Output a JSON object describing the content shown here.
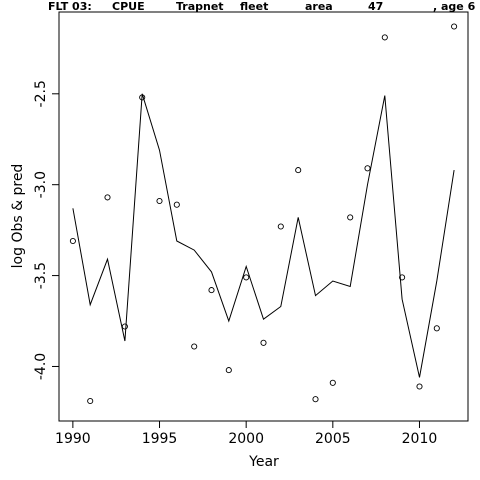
{
  "chart_data": {
    "type": "line",
    "title_parts": [
      "FLT 03:",
      "CPUE",
      "Trapnet",
      "fleet",
      "area",
      "47",
      ", age 6"
    ],
    "xlabel": "Year",
    "ylabel": "log Obs & pred",
    "xlim": [
      1989.2,
      2012.8
    ],
    "ylim": [
      -4.3,
      -2.05
    ],
    "x_ticks": [
      1990,
      1995,
      2000,
      2005,
      2010
    ],
    "y_ticks": [
      -4.0,
      -3.5,
      -3.0,
      -2.5
    ],
    "x_tick_labels": [
      "1990",
      "1995",
      "2000",
      "2005",
      "2010"
    ],
    "y_tick_labels": [
      "-4.0",
      "-3.5",
      "-3.0",
      "-2.5"
    ],
    "series": [
      {
        "style": "points",
        "x": [
          1990,
          1991,
          1992,
          1993,
          1994,
          1995,
          1996,
          1997,
          1998,
          1999,
          2000,
          2001,
          2002,
          2003,
          2004,
          2005,
          2006,
          2007,
          2008,
          2009,
          2010,
          2011,
          2012
        ],
        "y": [
          -3.31,
          -4.19,
          -3.07,
          -3.78,
          -2.52,
          -3.09,
          -3.11,
          -3.89,
          -3.58,
          -4.02,
          -3.51,
          -3.87,
          -3.23,
          -2.92,
          -4.18,
          -4.09,
          -3.18,
          -2.91,
          -2.19,
          -3.51,
          -4.11,
          -3.79,
          -2.13
        ]
      },
      {
        "style": "line",
        "x": [
          1990,
          1991,
          1992,
          1993,
          1994,
          1995,
          1996,
          1997,
          1998,
          1999,
          2000,
          2001,
          2002,
          2003,
          2004,
          2005,
          2006,
          2007,
          2008,
          2009,
          2010,
          2011,
          2012
        ],
        "y": [
          -3.13,
          -3.66,
          -3.41,
          -3.86,
          -2.5,
          -2.81,
          -3.31,
          -3.36,
          -3.48,
          -3.75,
          -3.45,
          -3.74,
          -3.67,
          -3.18,
          -3.61,
          -3.53,
          -3.56,
          -3.0,
          -2.51,
          -3.63,
          -4.06,
          -3.53,
          -2.92
        ]
      }
    ]
  }
}
